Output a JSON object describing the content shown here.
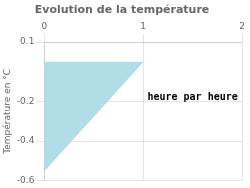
{
  "chart_data": {
    "type": "area",
    "title": "Evolution de la température",
    "ylabel": "Température en °C",
    "annotations": [
      {
        "text": "heure par heure",
        "x": 1.5,
        "y": -0.18
      }
    ],
    "x": [
      0,
      0,
      1
    ],
    "values": [
      0,
      -0.55,
      0
    ],
    "color": "#b0dde8",
    "xlim": [
      0,
      2
    ],
    "ylim": [
      -0.6,
      0.1
    ],
    "xticks": [
      0,
      1,
      2
    ],
    "yticks": [
      0.1,
      -0.2,
      -0.4,
      -0.6
    ],
    "grid": true
  }
}
